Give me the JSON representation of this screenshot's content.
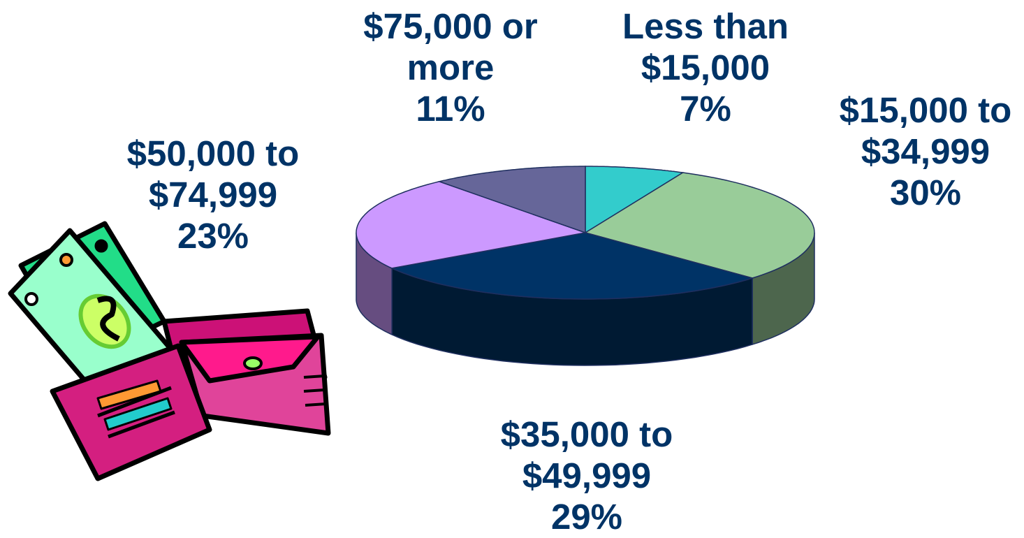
{
  "chart_data": {
    "type": "pie",
    "categories": [
      "Less than $15,000",
      "$15,000 to $34,999",
      "$35,000 to $49,999",
      "$50,000 to $74,999",
      "$75,000 or more"
    ],
    "values": [
      7,
      30,
      29,
      23,
      11
    ],
    "value_labels": [
      "7%",
      "30%",
      "29%",
      "23%",
      "11%"
    ],
    "colors": [
      "#33cccc",
      "#99cc99",
      "#003366",
      "#cc99ff",
      "#666699"
    ]
  }
}
